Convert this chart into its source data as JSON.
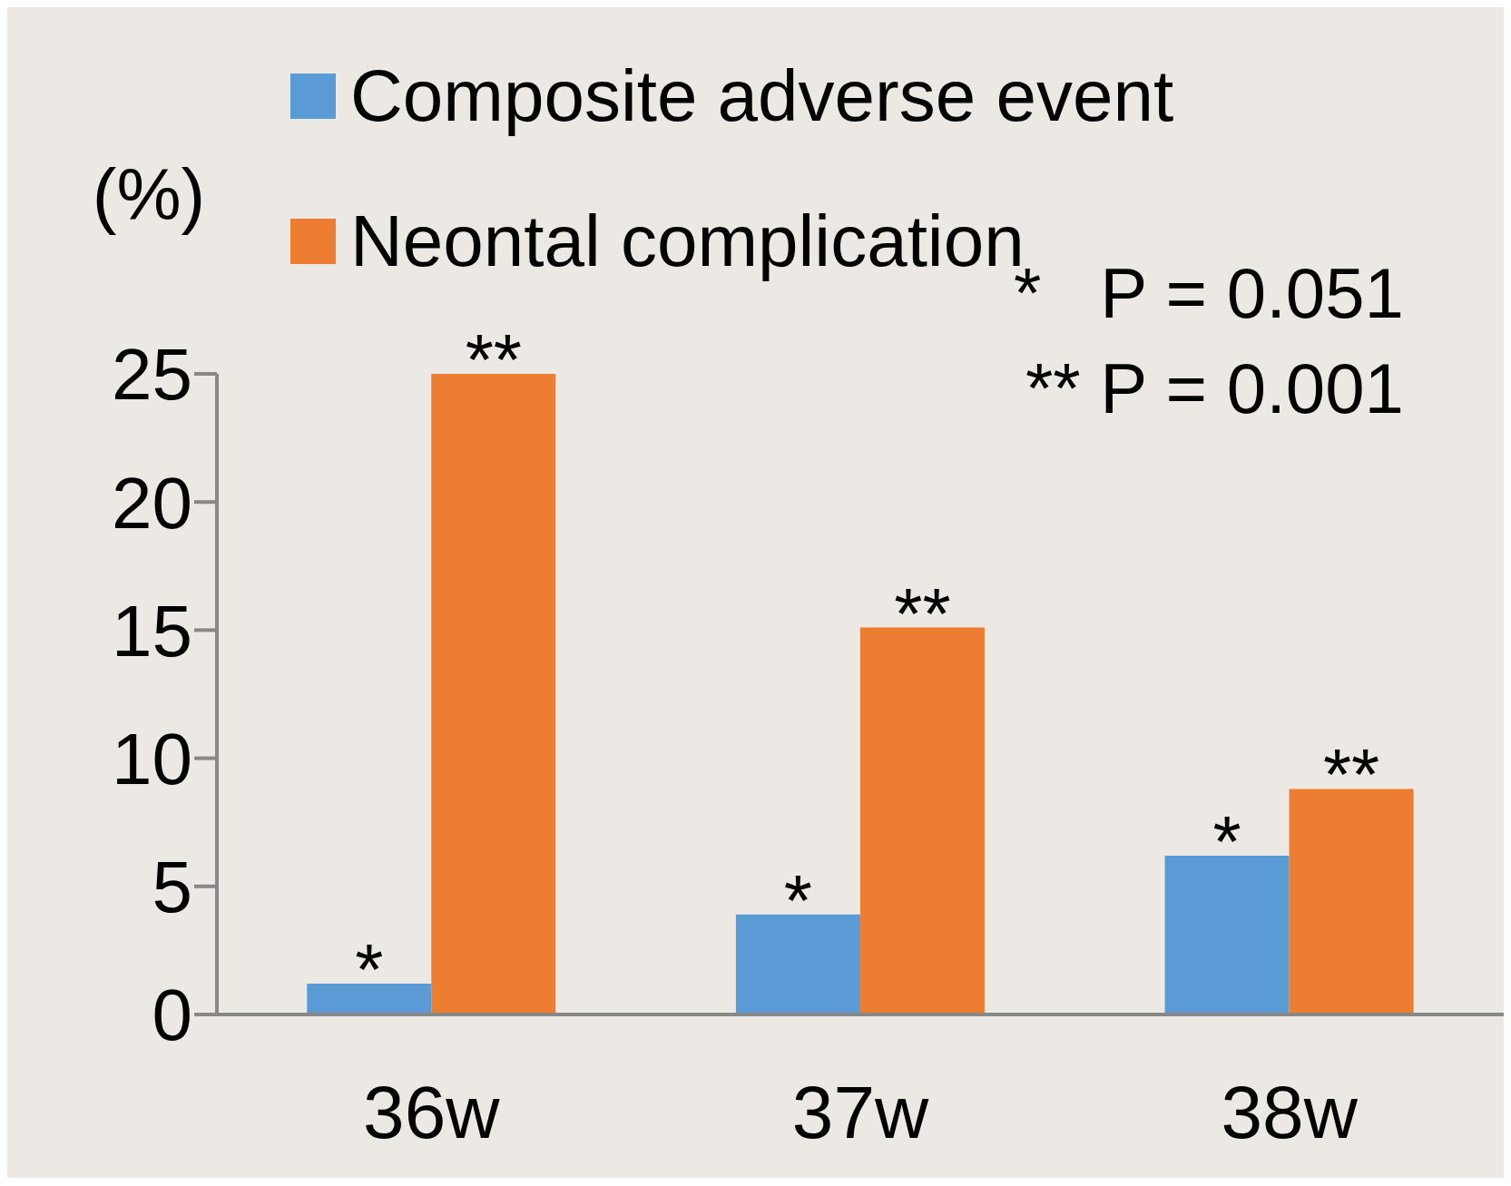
{
  "chart_data": {
    "type": "bar",
    "ylabel": "(%)",
    "categories": [
      "36w",
      "37w",
      "38w"
    ],
    "series": [
      {
        "name": "Composite adverse event",
        "color": "#5b9bd5",
        "values": [
          1.2,
          3.9,
          6.2
        ]
      },
      {
        "name": "Neontal complication",
        "color": "#ed7d31",
        "values": [
          25,
          15.1,
          8.8
        ]
      }
    ],
    "ylim": [
      0,
      25
    ],
    "yticks": [
      0,
      5,
      10,
      15,
      20,
      25
    ],
    "grid": false,
    "legend": "top",
    "annotations": [
      {
        "text": "*",
        "x": "36w",
        "y": 1.2
      },
      {
        "text": "**",
        "x": "36w",
        "y": 25
      },
      {
        "text": "*",
        "x": "37w",
        "y": 3.9
      },
      {
        "text": "**",
        "x": "37w",
        "y": 15.1
      },
      {
        "text": "*",
        "x": "38w",
        "y": 6.2
      },
      {
        "text": "**",
        "x": "38w",
        "y": 8.8
      },
      "*   P = 0.051",
      "** P = 0.001"
    ]
  }
}
